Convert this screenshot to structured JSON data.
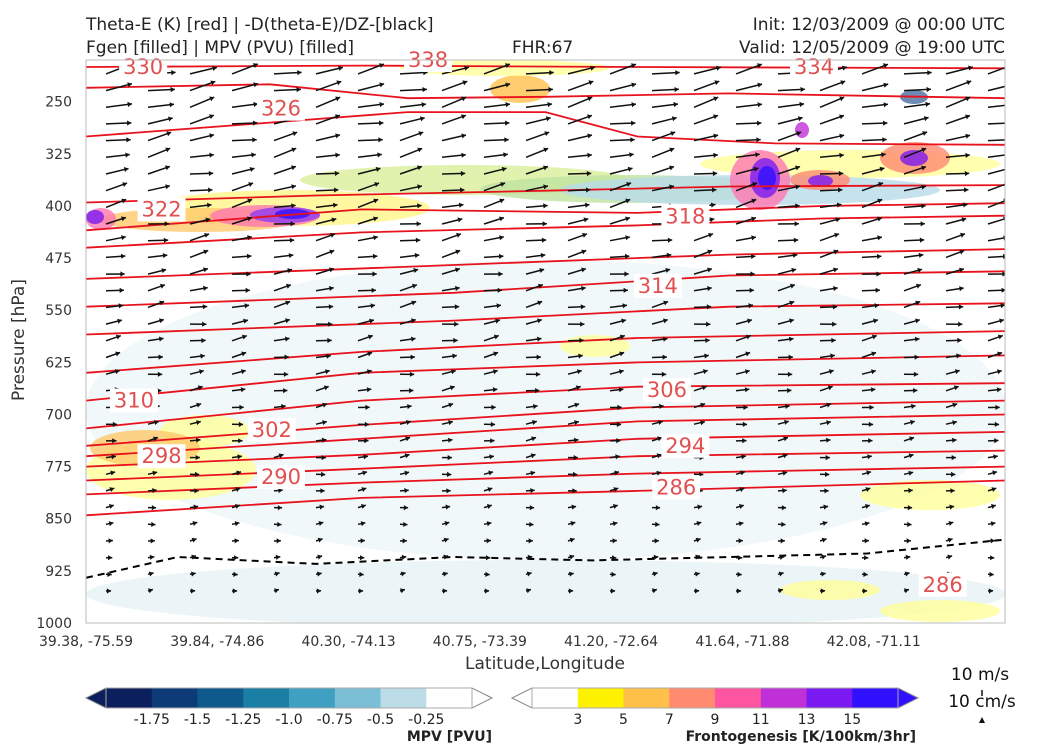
{
  "header": {
    "title_line1": "Theta-E (K) [red] | -D(theta-E)/DZ-[black]",
    "title_line2": "Fgen [filled] | MPV (PVU) [filled]",
    "fhr": "FHR:67",
    "init": "Init: 12/03/2009 @ 00:00 UTC",
    "valid": "Valid: 12/05/2009 @ 19:00 UTC"
  },
  "chart_data": {
    "type": "cross-section",
    "xlabel": "Latitude,Longitude",
    "ylabel": "Pressure [hPa]",
    "x_ticks": [
      "39.38, -75.59",
      "39.84, -74.86",
      "40.30, -74.13",
      "40.75, -73.39",
      "41.20, -72.64",
      "41.64, -71.88",
      "42.08, -71.11"
    ],
    "y_ticks": [
      250,
      325,
      400,
      475,
      550,
      625,
      700,
      775,
      850,
      925,
      1000
    ],
    "ylim": [
      1000,
      190
    ],
    "theta_e_labels": [
      {
        "value": "330",
        "x_frac": 0.06,
        "p": 200
      },
      {
        "value": "338",
        "x_frac": 0.37,
        "p": 190
      },
      {
        "value": "334",
        "x_frac": 0.79,
        "p": 200
      },
      {
        "value": "326",
        "x_frac": 0.21,
        "p": 260
      },
      {
        "value": "322",
        "x_frac": 0.08,
        "p": 405
      },
      {
        "value": "318",
        "x_frac": 0.65,
        "p": 415
      },
      {
        "value": "314",
        "x_frac": 0.62,
        "p": 515
      },
      {
        "value": "310",
        "x_frac": 0.05,
        "p": 680
      },
      {
        "value": "306",
        "x_frac": 0.63,
        "p": 665
      },
      {
        "value": "302",
        "x_frac": 0.2,
        "p": 722
      },
      {
        "value": "298",
        "x_frac": 0.08,
        "p": 760
      },
      {
        "value": "294",
        "x_frac": 0.65,
        "p": 745
      },
      {
        "value": "290",
        "x_frac": 0.21,
        "p": 790
      },
      {
        "value": "286",
        "x_frac": 0.64,
        "p": 805
      },
      {
        "value": "286",
        "x_frac": 0.93,
        "p": 945
      }
    ],
    "mpv_colorbar": {
      "title": "MPV [PVU]",
      "ticks": [
        "-1.75",
        "-1.5",
        "-1.25",
        "-1.0",
        "-0.75",
        "-0.5",
        "-0.25"
      ],
      "colors": [
        "#0a1f5c",
        "#0d3b78",
        "#0f5a8c",
        "#1b7ea5",
        "#3fa0c2",
        "#7bbfd6",
        "#bcdde8",
        "#ffffff"
      ]
    },
    "fgen_colorbar": {
      "title": "Frontogenesis [K/100km/3hr]",
      "ticks": [
        "3",
        "5",
        "7",
        "9",
        "11",
        "13",
        "15"
      ],
      "colors": [
        "#ffffff",
        "#fff200",
        "#ffc04a",
        "#ff8a70",
        "#ff55a0",
        "#c030d8",
        "#7a1af0",
        "#3010ff"
      ]
    },
    "wind_reference": {
      "u_label": "10 m/s",
      "w_label": "10 cm/s"
    }
  }
}
